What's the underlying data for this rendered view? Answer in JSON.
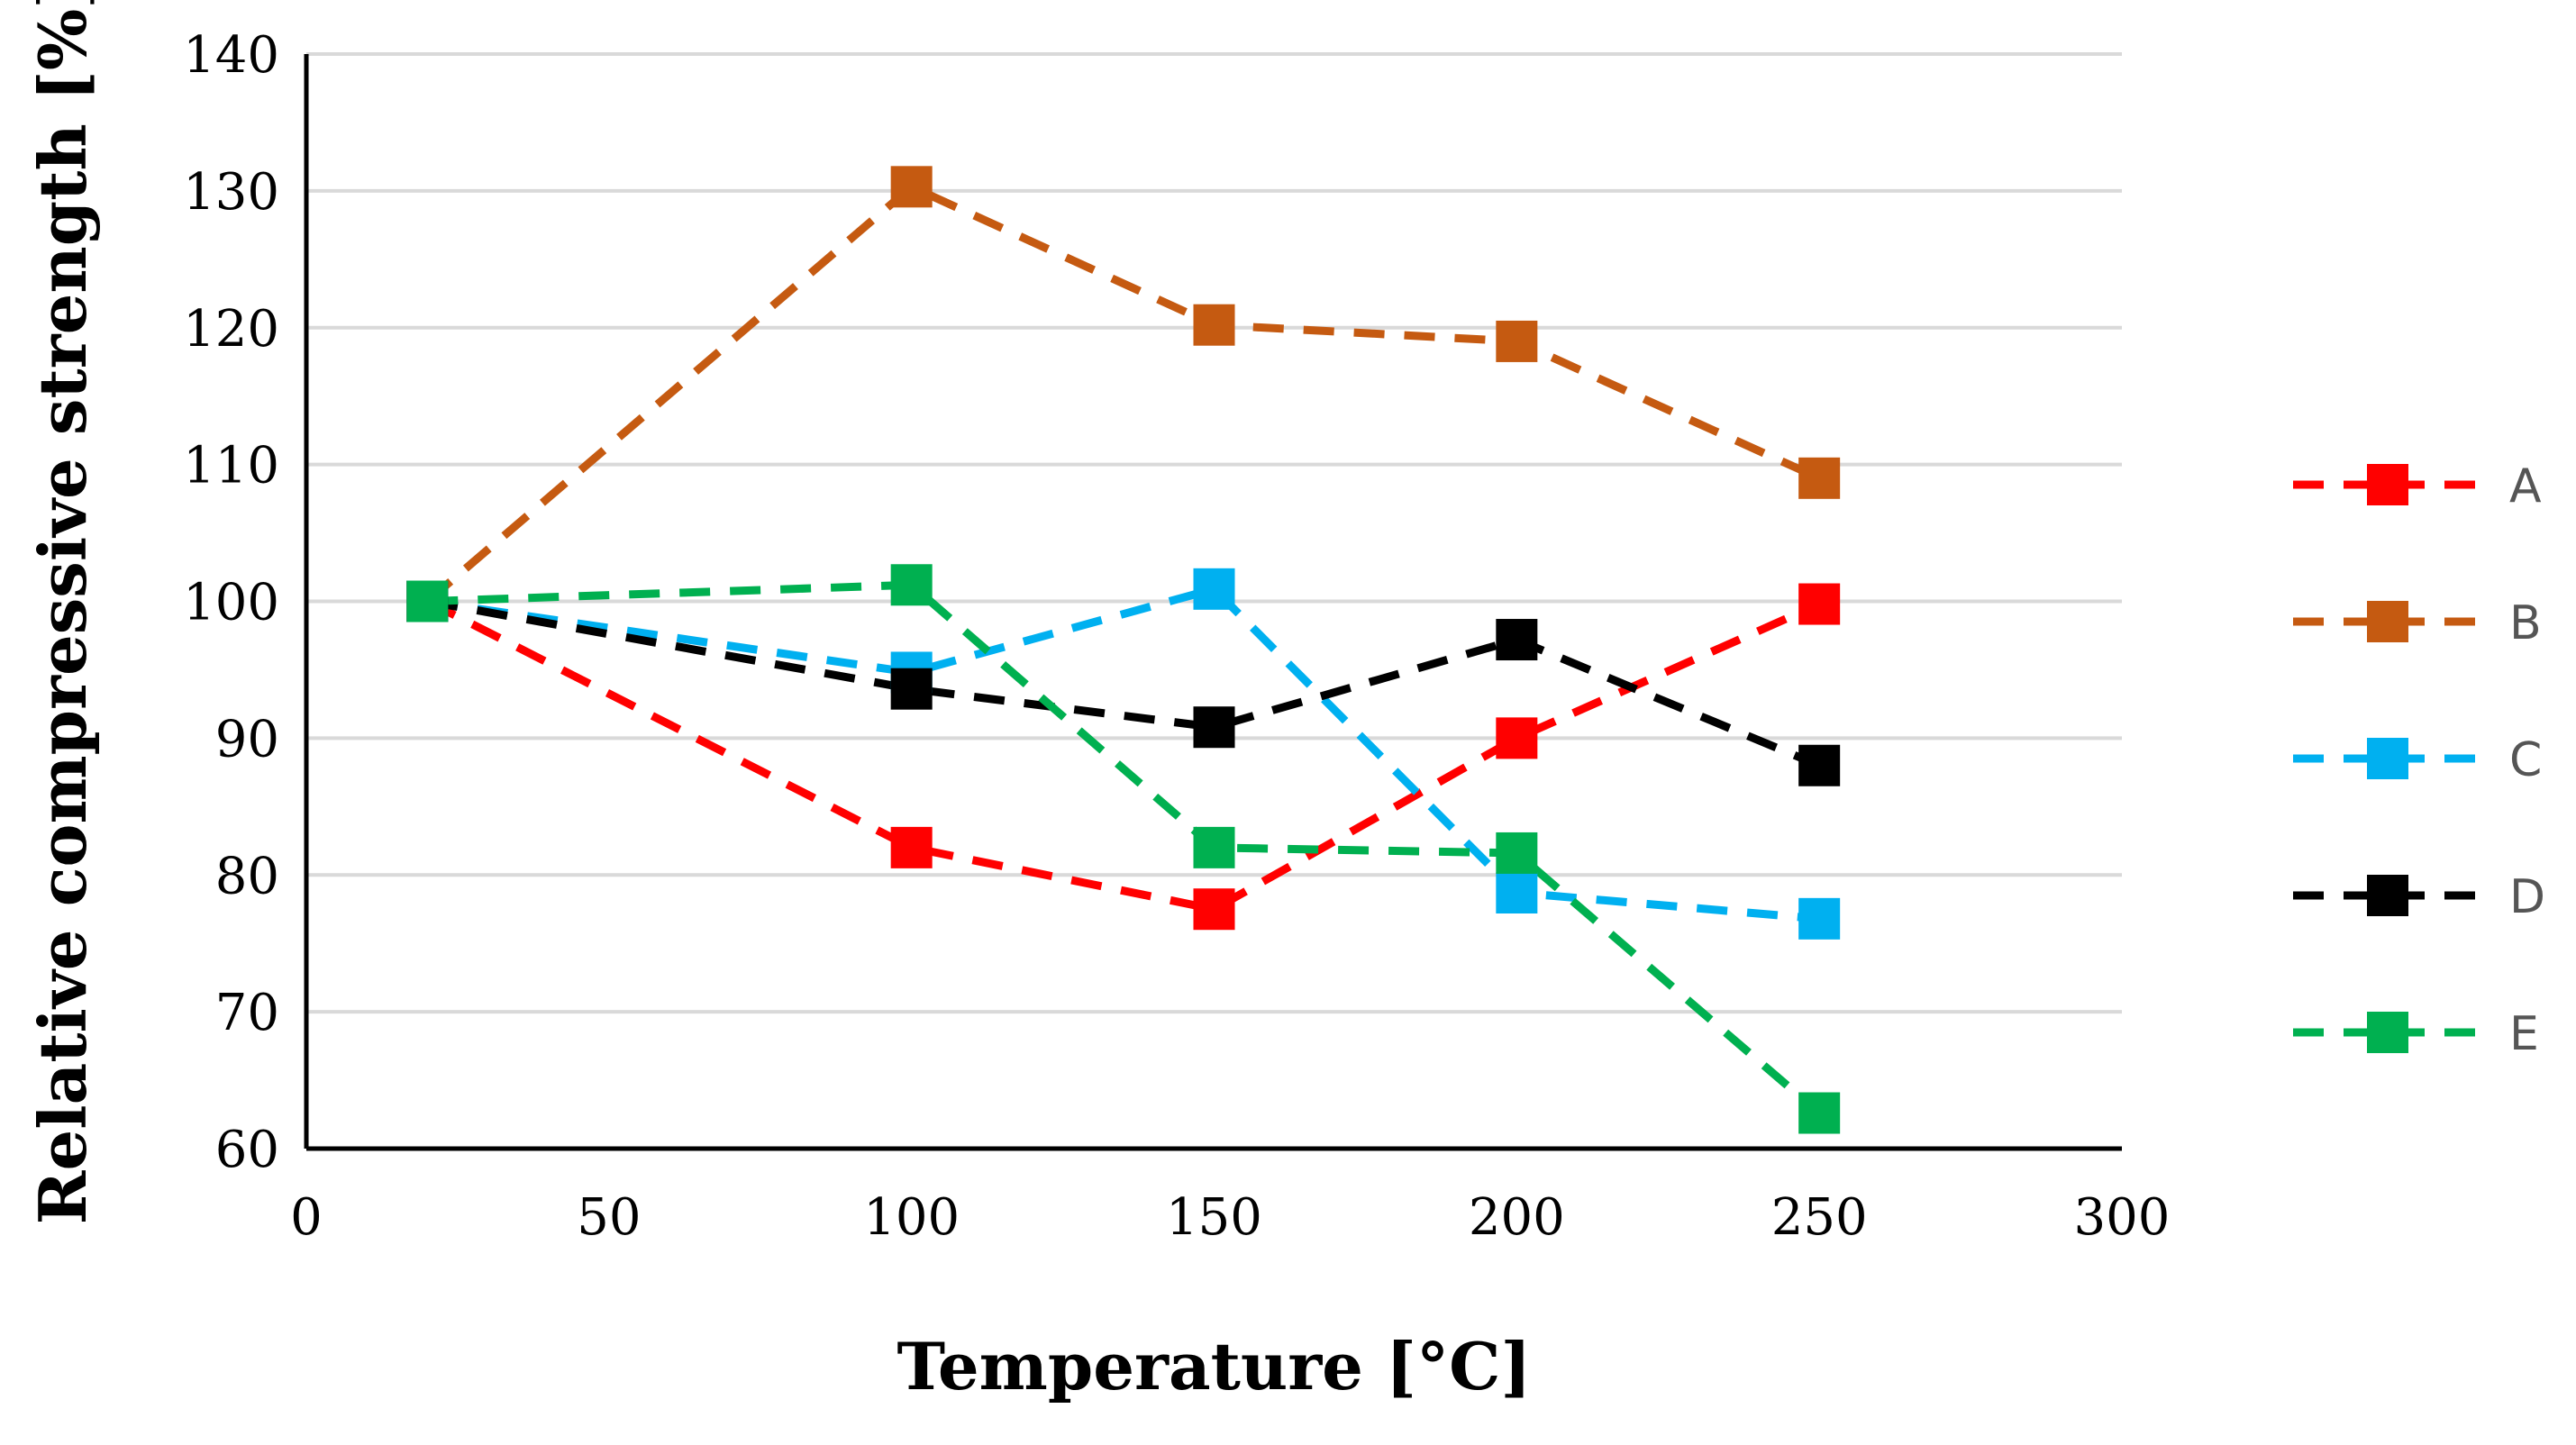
{
  "chart_data": {
    "type": "line",
    "title": "",
    "xlabel": "Temperature [°C]",
    "ylabel": "Relative compressive strength [%]",
    "xlim": [
      0,
      300
    ],
    "ylim": [
      60,
      140
    ],
    "x_ticks": [
      "0",
      "50",
      "100",
      "150",
      "200",
      "250",
      "300"
    ],
    "y_ticks": [
      "60",
      "70",
      "80",
      "90",
      "100",
      "110",
      "120",
      "130",
      "140"
    ],
    "grid": "horizontal",
    "legend_position": "right",
    "x": [
      20,
      100,
      150,
      200,
      250
    ],
    "series": [
      {
        "name": "A",
        "color": "#ff0000",
        "values": [
          100,
          82,
          77.5,
          90,
          99.8
        ]
      },
      {
        "name": "B",
        "color": "#c55a11",
        "values": [
          100,
          130.3,
          120.2,
          119,
          109
        ]
      },
      {
        "name": "C",
        "color": "#00b0f0",
        "values": [
          100,
          94.8,
          100.9,
          78.7,
          76.8
        ]
      },
      {
        "name": "D",
        "color": "#000000",
        "values": [
          100,
          93.6,
          90.8,
          97.2,
          88
        ]
      },
      {
        "name": "E",
        "color": "#00b050",
        "values": [
          100,
          101.2,
          82,
          81.6,
          62.6
        ]
      }
    ]
  }
}
